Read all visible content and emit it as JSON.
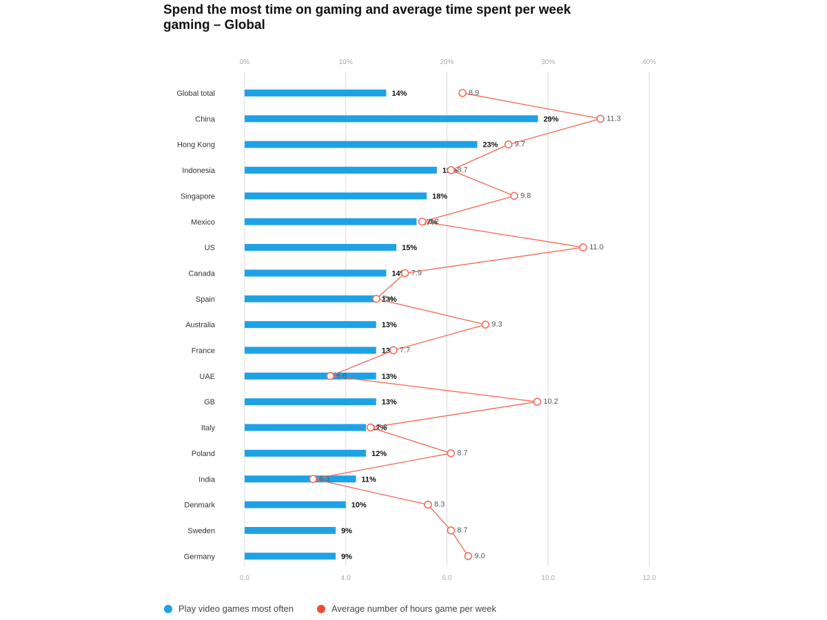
{
  "title": "Spend the most time on gaming and average time spent per week gaming – Global",
  "colors": {
    "bar": "#1ea2e6",
    "line": "#f26d5b",
    "grid": "#d8d8d8",
    "axis_text": "#aaaaaa"
  },
  "legend": {
    "bar_label": "Play video games most often",
    "line_label": "Average number of hours game per week"
  },
  "chart_data": {
    "type": "bar",
    "orientation": "horizontal",
    "title": "Spend the most time on gaming and average time spent per week gaming – Global",
    "categories": [
      "Global total",
      "China",
      "Hong Kong",
      "Indonesia",
      "Singapore",
      "Mexico",
      "US",
      "Canada",
      "Spain",
      "Australia",
      "France",
      "UAE",
      "GB",
      "Italy",
      "Poland",
      "India",
      "Denmark",
      "Sweden",
      "Germany"
    ],
    "top_axis": {
      "ticks": [
        "0%",
        "10%",
        "20%",
        "30%",
        "40%"
      ],
      "range": [
        0,
        40
      ]
    },
    "bottom_axis": {
      "ticks": [
        "0.0",
        "4.0",
        "6.0",
        "10.0",
        "12.0"
      ]
    },
    "grid": true,
    "legend_position": "bottom-left",
    "series": [
      {
        "name": "Play video games most often",
        "type": "bar",
        "values": [
          14,
          29,
          23,
          19,
          18,
          17,
          15,
          14,
          13,
          13,
          13,
          13,
          13,
          12,
          12,
          11,
          10,
          9,
          9
        ],
        "labels": [
          "14%",
          "29%",
          "23%",
          "19%",
          "18%",
          "17%",
          "15%",
          "14%",
          "13%",
          "13%",
          "13%",
          "13%",
          "13%",
          "12%",
          "12%",
          "11%",
          "10%",
          "9%",
          "9%"
        ]
      },
      {
        "name": "Average number of hours game per week",
        "type": "line",
        "values": [
          8.9,
          11.3,
          9.7,
          8.7,
          9.8,
          8.2,
          11.0,
          7.9,
          7.4,
          9.3,
          7.7,
          6.6,
          10.2,
          7.3,
          8.7,
          6.3,
          8.3,
          8.7,
          9.0
        ],
        "labels": [
          "8.9",
          "11.3",
          "9.7",
          "8.7",
          "9.8",
          "8.2",
          "11.0",
          "7.9",
          "7.4",
          "9.3",
          "7.7",
          "6.6",
          "10.2",
          "7.3",
          "8.7",
          "6.3",
          "8.3",
          "8.7",
          "9.0"
        ]
      }
    ]
  }
}
